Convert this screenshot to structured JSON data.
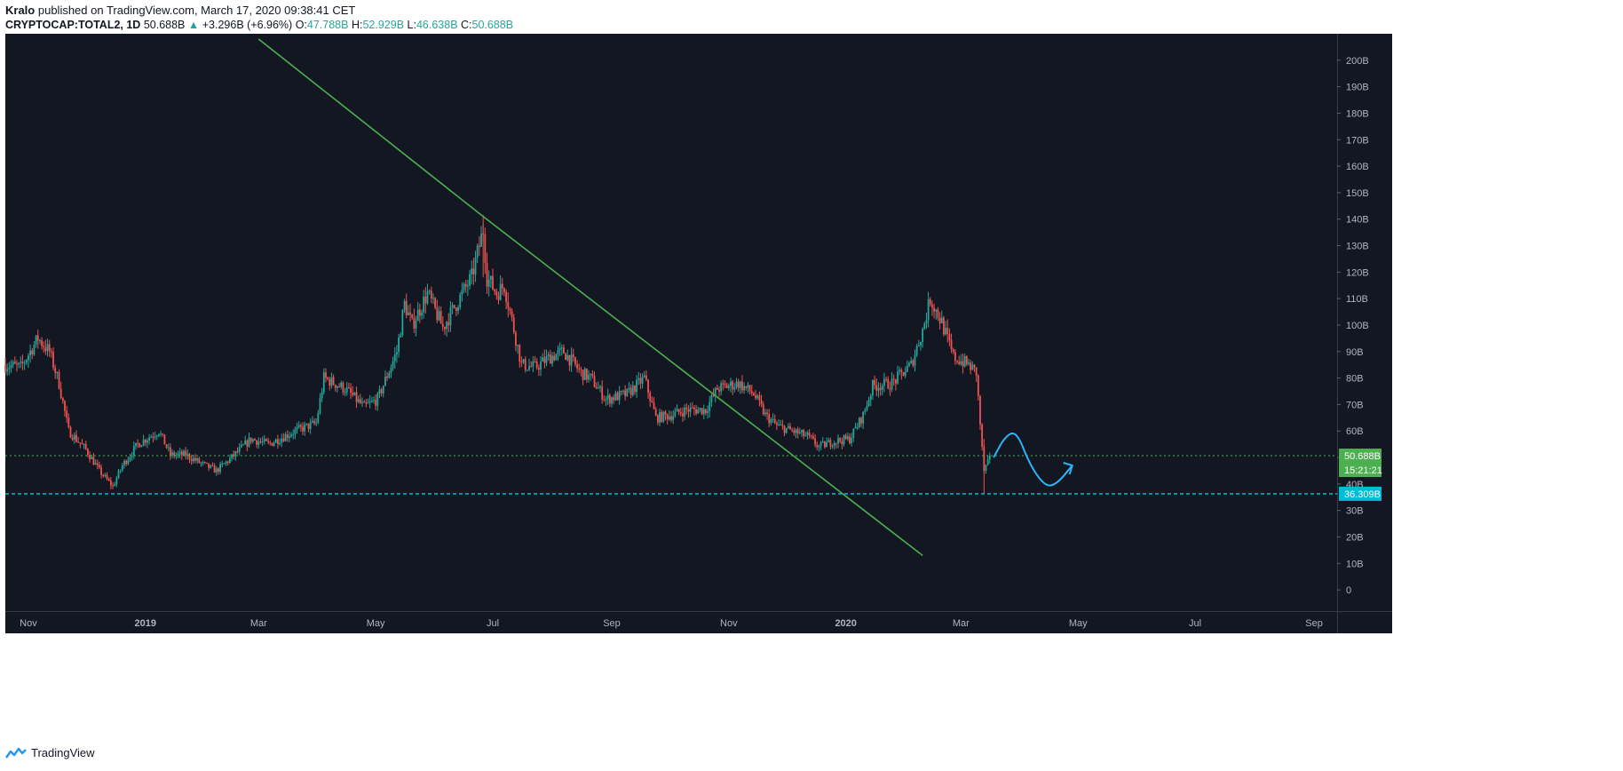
{
  "header": {
    "author": "Kralo",
    "published_text": "published on TradingView.com, March 17, 2020 09:38:41 CET",
    "symbol": "CRYPTOCAP:TOTAL2, 1D",
    "last": "50.688B",
    "change_arrow": "▲",
    "change": "+3.296B (+6.96%)",
    "open_label": "O:",
    "open": "47.788B",
    "high_label": "H:",
    "high": "52.929B",
    "low_label": "L:",
    "low": "46.638B",
    "close_label": "C:",
    "close": "50.688B"
  },
  "footer": {
    "brand": "TradingView"
  },
  "colors": {
    "background": "#131722",
    "up": "#26a69a",
    "down": "#ef5350",
    "trendline": "#4caf50",
    "support": "#00bcd4",
    "projection": "#29b6f6",
    "last_price": "#4caf50"
  },
  "chart_data": {
    "type": "candlestick",
    "title": "CRYPTOCAP:TOTAL2, 1D",
    "y_unit": "B",
    "ylim": [
      -8,
      210
    ],
    "y_ticks": [
      "0",
      "10B",
      "20B",
      "30B",
      "40B",
      "50B",
      "60B",
      "70B",
      "80B",
      "90B",
      "100B",
      "110B",
      "120B",
      "130B",
      "140B",
      "150B",
      "160B",
      "170B",
      "180B",
      "190B",
      "200B"
    ],
    "y_tick_values": [
      0,
      10,
      20,
      30,
      40,
      50,
      60,
      70,
      80,
      90,
      100,
      110,
      120,
      130,
      140,
      150,
      160,
      170,
      180,
      190,
      200
    ],
    "x_range": [
      "2018-10-20",
      "2020-09-13"
    ],
    "x_ticks": [
      {
        "label": "Nov",
        "date": "2018-11-01"
      },
      {
        "label": "2019",
        "date": "2019-01-01"
      },
      {
        "label": "Mar",
        "date": "2019-03-01"
      },
      {
        "label": "May",
        "date": "2019-05-01"
      },
      {
        "label": "Jul",
        "date": "2019-07-01"
      },
      {
        "label": "Sep",
        "date": "2019-09-01"
      },
      {
        "label": "Nov",
        "date": "2019-11-01"
      },
      {
        "label": "2020",
        "date": "2020-01-01"
      },
      {
        "label": "Mar",
        "date": "2020-03-01"
      },
      {
        "label": "May",
        "date": "2020-05-01"
      },
      {
        "label": "Jul",
        "date": "2020-07-01"
      },
      {
        "label": "Sep",
        "date": "2020-09-01"
      }
    ],
    "close_path": [
      [
        "2018-10-20",
        85
      ],
      [
        "2018-10-28",
        84
      ],
      [
        "2018-11-06",
        95
      ],
      [
        "2018-11-12",
        90
      ],
      [
        "2018-11-17",
        78
      ],
      [
        "2018-11-22",
        60
      ],
      [
        "2018-12-01",
        53
      ],
      [
        "2018-12-08",
        45
      ],
      [
        "2018-12-15",
        39
      ],
      [
        "2018-12-20",
        47
      ],
      [
        "2018-12-28",
        55
      ],
      [
        "2019-01-08",
        60
      ],
      [
        "2019-01-14",
        51
      ],
      [
        "2019-01-22",
        51
      ],
      [
        "2019-02-01",
        47
      ],
      [
        "2019-02-07",
        45
      ],
      [
        "2019-02-15",
        50
      ],
      [
        "2019-02-25",
        57
      ],
      [
        "2019-03-06",
        55
      ],
      [
        "2019-03-20",
        60
      ],
      [
        "2019-03-31",
        63
      ],
      [
        "2019-04-04",
        80
      ],
      [
        "2019-04-15",
        76
      ],
      [
        "2019-04-25",
        69
      ],
      [
        "2019-05-02",
        72
      ],
      [
        "2019-05-12",
        90
      ],
      [
        "2019-05-16",
        108
      ],
      [
        "2019-05-20",
        100
      ],
      [
        "2019-05-28",
        112
      ],
      [
        "2019-06-05",
        99
      ],
      [
        "2019-06-12",
        108
      ],
      [
        "2019-06-20",
        118
      ],
      [
        "2019-06-26",
        136
      ],
      [
        "2019-06-28",
        118
      ],
      [
        "2019-07-03",
        112
      ],
      [
        "2019-07-07",
        115
      ],
      [
        "2019-07-10",
        105
      ],
      [
        "2019-07-16",
        85
      ],
      [
        "2019-07-23",
        84
      ],
      [
        "2019-07-31",
        88
      ],
      [
        "2019-08-07",
        90
      ],
      [
        "2019-08-16",
        82
      ],
      [
        "2019-08-21",
        80
      ],
      [
        "2019-08-29",
        72
      ],
      [
        "2019-09-09",
        74
      ],
      [
        "2019-09-18",
        80
      ],
      [
        "2019-09-24",
        65
      ],
      [
        "2019-10-02",
        66
      ],
      [
        "2019-10-10",
        68
      ],
      [
        "2019-10-20",
        68
      ],
      [
        "2019-10-26",
        76
      ],
      [
        "2019-11-06",
        78
      ],
      [
        "2019-11-14",
        74
      ],
      [
        "2019-11-20",
        66
      ],
      [
        "2019-11-26",
        62
      ],
      [
        "2019-12-04",
        60
      ],
      [
        "2019-12-12",
        58
      ],
      [
        "2019-12-18",
        54
      ],
      [
        "2019-12-25",
        56
      ],
      [
        "2020-01-03",
        57
      ],
      [
        "2020-01-10",
        66
      ],
      [
        "2020-01-15",
        77
      ],
      [
        "2020-01-25",
        78
      ],
      [
        "2020-02-04",
        85
      ],
      [
        "2020-02-10",
        98
      ],
      [
        "2020-02-14",
        110
      ],
      [
        "2020-02-20",
        101
      ],
      [
        "2020-02-26",
        88
      ],
      [
        "2020-03-05",
        85
      ],
      [
        "2020-03-09",
        82
      ],
      [
        "2020-03-12",
        53
      ],
      [
        "2020-03-13",
        45
      ],
      [
        "2020-03-17",
        50.688
      ]
    ],
    "annotations": [
      {
        "type": "trendline",
        "from": [
          "2019-03-01",
          208
        ],
        "to": [
          "2019-06-26",
          141
        ]
      },
      {
        "type": "trendline",
        "from": [
          "2019-06-26",
          141
        ],
        "to": [
          "2020-02-10",
          13
        ]
      },
      {
        "type": "horizontal_line",
        "price": 36.309,
        "label": "36.309B",
        "style": "dashed",
        "color": "#00bcd4"
      },
      {
        "type": "horizontal_line",
        "price": 50.688,
        "label": "50.688B",
        "style": "dotted",
        "color": "#4caf50"
      },
      {
        "type": "countdown",
        "text": "15:21:21"
      },
      {
        "type": "projection_path",
        "points": [
          [
            "2020-03-18",
            50
          ],
          [
            "2020-03-24",
            58
          ],
          [
            "2020-03-30",
            60
          ],
          [
            "2020-04-06",
            47
          ],
          [
            "2020-04-14",
            39
          ],
          [
            "2020-04-20",
            40
          ],
          [
            "2020-04-28",
            47
          ]
        ]
      }
    ]
  }
}
